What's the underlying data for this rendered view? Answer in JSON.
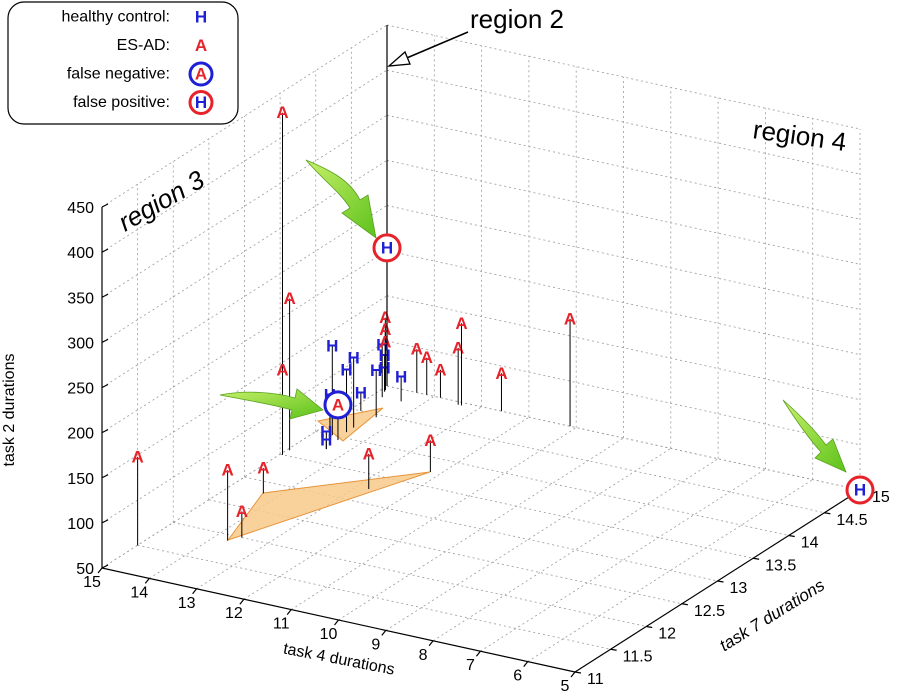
{
  "chart_data": {
    "type": "scatter3d",
    "x_label": "task 4 durations",
    "y_label": "task 7 durations",
    "z_label": "task 2 durations",
    "xlim": [
      15,
      5
    ],
    "xticks": [
      15,
      14,
      13,
      12,
      11,
      10,
      9,
      8,
      7,
      6,
      5
    ],
    "ylim": [
      11,
      15
    ],
    "yticks": [
      11,
      11.5,
      12,
      12.5,
      13,
      13.5,
      14,
      14.5,
      15
    ],
    "zlim": [
      50,
      450
    ],
    "zticks": [
      50,
      100,
      150,
      200,
      250,
      300,
      350,
      400,
      450
    ],
    "grid": true,
    "annotations": [
      "region 2",
      "region 3",
      "region 4"
    ],
    "series": [
      {
        "name": "healthy control:",
        "marker": "H",
        "color": "#1f1fd6",
        "x": [
          14.65,
          14.5,
          14.5,
          14.4,
          14.8,
          14.9,
          14.9,
          14.4,
          14.8,
          14.7,
          14.4,
          14.4
        ],
        "y": [
          14.0,
          14.2,
          14.1,
          14.45,
          14.8,
          14.9,
          14.9,
          14.8,
          14.5,
          14.0,
          13.75,
          13.75
        ],
        "z": [
          149,
          127,
          119,
          102,
          108,
          90,
          76,
          77,
          70,
          94,
          69,
          60
        ]
      },
      {
        "name": "ES-AD:",
        "marker": "A",
        "color": "#e6232a",
        "x": [
          15,
          13.7,
          13.55,
          14.3,
          12.75,
          12.2,
          14.95,
          14.95,
          14.95,
          14.93,
          14.93,
          14.93,
          14.37,
          14.16,
          13.87,
          13.42,
          13.35,
          12.58,
          11.13
        ],
        "y": [
          11.5,
          11.9,
          12.0,
          12.8,
          13.25,
          13.75,
          13.5,
          13.6,
          13.5,
          14.93,
          14.93,
          14.93,
          15,
          15,
          15,
          14.95,
          14.95,
          15,
          15
        ],
        "z": [
          148,
          128,
          79,
          78,
          89,
          85,
          429,
          218,
          144,
          130,
          117,
          103,
          98,
          91,
          81,
          113,
          141,
          92,
          169
        ]
      },
      {
        "name": "false negative:",
        "marker": "A",
        "color": "#e6232a",
        "ring_color": "#1f1fd6",
        "x": [
          14.44
        ],
        "y": [
          13.94
        ],
        "z": [
          89
        ]
      },
      {
        "name": "false positive:",
        "marker": "H",
        "color": "#1f1fd6",
        "ring_color": "#e6232a",
        "x": [
          15,
          5
        ],
        "y": [
          15,
          15
        ],
        "z": [
          203,
          50
        ]
      }
    ]
  }
}
